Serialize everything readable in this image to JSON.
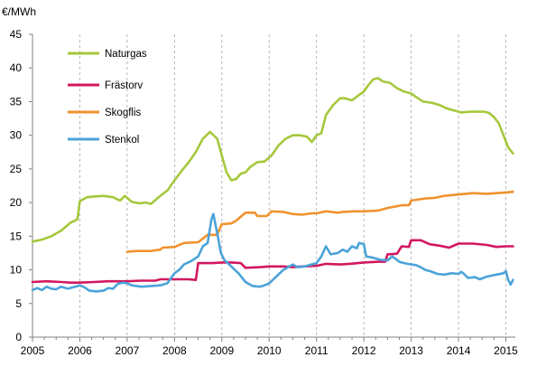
{
  "chart_data": {
    "type": "line",
    "ylabel": "€/MWh",
    "xlabel": "",
    "xlim": [
      2005,
      2015.2
    ],
    "ylim": [
      0,
      45
    ],
    "y_ticks": [
      0,
      5,
      10,
      15,
      20,
      25,
      30,
      35,
      40,
      45
    ],
    "x_ticks": [
      2005,
      2006,
      2007,
      2008,
      2009,
      2010,
      2011,
      2012,
      2013,
      2014,
      2015
    ],
    "x_tick_labels": [
      "2005",
      "2006",
      "2007",
      "2008",
      "2009",
      "2010",
      "2011",
      "2012",
      "2013",
      "2014",
      "2015"
    ],
    "y_tick_labels": [
      "0",
      "5",
      "10",
      "15",
      "20",
      "25",
      "30",
      "35",
      "40",
      "45"
    ],
    "grid": {
      "x": "dashed-vertical",
      "y": false
    },
    "legend": {
      "placement": "top-left"
    },
    "series": [
      {
        "name": "Naturgas",
        "color": "#a5c83c",
        "points": [
          [
            2005.0,
            14.2
          ],
          [
            2005.2,
            14.5
          ],
          [
            2005.4,
            15.0
          ],
          [
            2005.6,
            15.8
          ],
          [
            2005.8,
            17.0
          ],
          [
            2005.95,
            17.5
          ],
          [
            2006.0,
            20.2
          ],
          [
            2006.15,
            20.8
          ],
          [
            2006.3,
            20.9
          ],
          [
            2006.5,
            21.0
          ],
          [
            2006.7,
            20.8
          ],
          [
            2006.85,
            20.3
          ],
          [
            2006.95,
            21.0
          ],
          [
            2007.1,
            20.1
          ],
          [
            2007.25,
            19.9
          ],
          [
            2007.4,
            20.0
          ],
          [
            2007.5,
            19.8
          ],
          [
            2007.7,
            21.0
          ],
          [
            2007.85,
            21.8
          ],
          [
            2008.0,
            23.3
          ],
          [
            2008.15,
            24.7
          ],
          [
            2008.3,
            26.0
          ],
          [
            2008.45,
            27.5
          ],
          [
            2008.6,
            29.5
          ],
          [
            2008.75,
            30.5
          ],
          [
            2008.9,
            29.5
          ],
          [
            2009.0,
            27.0
          ],
          [
            2009.1,
            24.5
          ],
          [
            2009.2,
            23.3
          ],
          [
            2009.3,
            23.5
          ],
          [
            2009.4,
            24.3
          ],
          [
            2009.5,
            24.5
          ],
          [
            2009.6,
            25.3
          ],
          [
            2009.75,
            26.0
          ],
          [
            2009.9,
            26.1
          ],
          [
            2010.05,
            27.0
          ],
          [
            2010.2,
            28.5
          ],
          [
            2010.35,
            29.5
          ],
          [
            2010.5,
            30.0
          ],
          [
            2010.65,
            30.0
          ],
          [
            2010.8,
            29.8
          ],
          [
            2010.9,
            29.0
          ],
          [
            2011.0,
            30.0
          ],
          [
            2011.1,
            30.3
          ],
          [
            2011.2,
            33.0
          ],
          [
            2011.35,
            34.5
          ],
          [
            2011.5,
            35.5
          ],
          [
            2011.6,
            35.5
          ],
          [
            2011.75,
            35.2
          ],
          [
            2011.9,
            36.0
          ],
          [
            2012.0,
            36.5
          ],
          [
            2012.1,
            37.5
          ],
          [
            2012.2,
            38.3
          ],
          [
            2012.3,
            38.5
          ],
          [
            2012.4,
            38.0
          ],
          [
            2012.55,
            37.8
          ],
          [
            2012.7,
            37.0
          ],
          [
            2012.85,
            36.5
          ],
          [
            2013.0,
            36.2
          ],
          [
            2013.1,
            35.7
          ],
          [
            2013.25,
            35.0
          ],
          [
            2013.45,
            34.8
          ],
          [
            2013.6,
            34.5
          ],
          [
            2013.75,
            34.0
          ],
          [
            2013.9,
            33.7
          ],
          [
            2014.05,
            33.4
          ],
          [
            2014.25,
            33.5
          ],
          [
            2014.4,
            33.5
          ],
          [
            2014.55,
            33.5
          ],
          [
            2014.65,
            33.3
          ],
          [
            2014.75,
            32.7
          ],
          [
            2014.85,
            31.8
          ],
          [
            2014.95,
            30.0
          ],
          [
            2015.05,
            28.2
          ],
          [
            2015.15,
            27.3
          ]
        ]
      },
      {
        "name": "Frästorv",
        "color": "#d2185f",
        "points": [
          [
            2005.0,
            8.2
          ],
          [
            2005.3,
            8.3
          ],
          [
            2005.6,
            8.2
          ],
          [
            2005.8,
            8.1
          ],
          [
            2006.0,
            8.1
          ],
          [
            2006.3,
            8.2
          ],
          [
            2006.6,
            8.3
          ],
          [
            2007.0,
            8.3
          ],
          [
            2007.3,
            8.4
          ],
          [
            2007.6,
            8.4
          ],
          [
            2007.7,
            8.6
          ],
          [
            2008.0,
            8.6
          ],
          [
            2008.3,
            8.6
          ],
          [
            2008.45,
            8.5
          ],
          [
            2008.5,
            11.0
          ],
          [
            2008.8,
            11.0
          ],
          [
            2009.0,
            11.1
          ],
          [
            2009.2,
            11.1
          ],
          [
            2009.4,
            11.0
          ],
          [
            2009.5,
            10.3
          ],
          [
            2009.8,
            10.4
          ],
          [
            2010.0,
            10.5
          ],
          [
            2010.3,
            10.5
          ],
          [
            2010.5,
            10.4
          ],
          [
            2010.7,
            10.5
          ],
          [
            2011.0,
            10.6
          ],
          [
            2011.2,
            10.9
          ],
          [
            2011.5,
            10.8
          ],
          [
            2011.7,
            10.9
          ],
          [
            2012.0,
            11.1
          ],
          [
            2012.3,
            11.2
          ],
          [
            2012.45,
            11.2
          ],
          [
            2012.5,
            12.3
          ],
          [
            2012.7,
            12.4
          ],
          [
            2012.8,
            13.5
          ],
          [
            2012.95,
            13.4
          ],
          [
            2013.0,
            14.4
          ],
          [
            2013.2,
            14.4
          ],
          [
            2013.4,
            13.8
          ],
          [
            2013.6,
            13.6
          ],
          [
            2013.8,
            13.3
          ],
          [
            2014.0,
            13.9
          ],
          [
            2014.3,
            13.9
          ],
          [
            2014.6,
            13.7
          ],
          [
            2014.8,
            13.4
          ],
          [
            2015.0,
            13.5
          ],
          [
            2015.15,
            13.5
          ]
        ]
      },
      {
        "name": "Skogflis",
        "color": "#f0922e",
        "points": [
          [
            2007.0,
            12.7
          ],
          [
            2007.2,
            12.8
          ],
          [
            2007.5,
            12.8
          ],
          [
            2007.7,
            13.0
          ],
          [
            2007.75,
            13.3
          ],
          [
            2008.0,
            13.4
          ],
          [
            2008.2,
            14.0
          ],
          [
            2008.5,
            14.1
          ],
          [
            2008.7,
            15.2
          ],
          [
            2008.9,
            15.2
          ],
          [
            2009.0,
            16.8
          ],
          [
            2009.2,
            16.9
          ],
          [
            2009.3,
            17.3
          ],
          [
            2009.5,
            18.5
          ],
          [
            2009.7,
            18.5
          ],
          [
            2009.75,
            18.0
          ],
          [
            2009.95,
            18.0
          ],
          [
            2010.05,
            18.7
          ],
          [
            2010.3,
            18.6
          ],
          [
            2010.5,
            18.3
          ],
          [
            2010.7,
            18.2
          ],
          [
            2010.9,
            18.4
          ],
          [
            2011.0,
            18.4
          ],
          [
            2011.2,
            18.7
          ],
          [
            2011.45,
            18.5
          ],
          [
            2011.55,
            18.6
          ],
          [
            2011.8,
            18.7
          ],
          [
            2012.0,
            18.7
          ],
          [
            2012.3,
            18.8
          ],
          [
            2012.5,
            19.2
          ],
          [
            2012.8,
            19.6
          ],
          [
            2012.95,
            19.6
          ],
          [
            2013.0,
            20.3
          ],
          [
            2013.3,
            20.6
          ],
          [
            2013.5,
            20.7
          ],
          [
            2013.7,
            21.0
          ],
          [
            2014.0,
            21.2
          ],
          [
            2014.3,
            21.4
          ],
          [
            2014.6,
            21.3
          ],
          [
            2014.8,
            21.4
          ],
          [
            2015.0,
            21.5
          ],
          [
            2015.15,
            21.6
          ]
        ]
      },
      {
        "name": "Stenkol",
        "color": "#4ba3d9",
        "points": [
          [
            2005.0,
            7.0
          ],
          [
            2005.1,
            7.3
          ],
          [
            2005.2,
            7.0
          ],
          [
            2005.3,
            7.5
          ],
          [
            2005.4,
            7.2
          ],
          [
            2005.5,
            7.1
          ],
          [
            2005.6,
            7.5
          ],
          [
            2005.75,
            7.2
          ],
          [
            2005.9,
            7.5
          ],
          [
            2006.0,
            7.7
          ],
          [
            2006.1,
            7.4
          ],
          [
            2006.2,
            6.9
          ],
          [
            2006.35,
            6.8
          ],
          [
            2006.5,
            6.9
          ],
          [
            2006.6,
            7.3
          ],
          [
            2006.7,
            7.2
          ],
          [
            2006.8,
            7.9
          ],
          [
            2006.9,
            8.1
          ],
          [
            2007.0,
            8.0
          ],
          [
            2007.1,
            7.7
          ],
          [
            2007.3,
            7.5
          ],
          [
            2007.5,
            7.6
          ],
          [
            2007.7,
            7.7
          ],
          [
            2007.85,
            8.0
          ],
          [
            2008.0,
            9.5
          ],
          [
            2008.1,
            10.0
          ],
          [
            2008.2,
            10.8
          ],
          [
            2008.35,
            11.3
          ],
          [
            2008.5,
            12.0
          ],
          [
            2008.6,
            13.5
          ],
          [
            2008.7,
            14.0
          ],
          [
            2008.78,
            17.5
          ],
          [
            2008.82,
            18.3
          ],
          [
            2008.9,
            15.5
          ],
          [
            2008.98,
            12.5
          ],
          [
            2009.05,
            11.5
          ],
          [
            2009.2,
            10.5
          ],
          [
            2009.35,
            9.5
          ],
          [
            2009.5,
            8.2
          ],
          [
            2009.65,
            7.6
          ],
          [
            2009.8,
            7.5
          ],
          [
            2009.9,
            7.7
          ],
          [
            2010.0,
            8.0
          ],
          [
            2010.15,
            9.0
          ],
          [
            2010.3,
            10.0
          ],
          [
            2010.5,
            10.8
          ],
          [
            2010.6,
            10.4
          ],
          [
            2010.75,
            10.5
          ],
          [
            2010.85,
            10.7
          ],
          [
            2011.0,
            11.0
          ],
          [
            2011.1,
            12.0
          ],
          [
            2011.2,
            13.5
          ],
          [
            2011.3,
            12.3
          ],
          [
            2011.45,
            12.5
          ],
          [
            2011.55,
            13.0
          ],
          [
            2011.65,
            12.7
          ],
          [
            2011.75,
            13.5
          ],
          [
            2011.85,
            13.2
          ],
          [
            2011.9,
            14.0
          ],
          [
            2012.0,
            13.8
          ],
          [
            2012.05,
            12.0
          ],
          [
            2012.2,
            11.8
          ],
          [
            2012.35,
            11.5
          ],
          [
            2012.5,
            11.4
          ],
          [
            2012.6,
            12.0
          ],
          [
            2012.75,
            11.2
          ],
          [
            2012.85,
            11.0
          ],
          [
            2013.0,
            10.8
          ],
          [
            2013.1,
            10.7
          ],
          [
            2013.2,
            10.4
          ],
          [
            2013.3,
            10.0
          ],
          [
            2013.4,
            9.8
          ],
          [
            2013.55,
            9.4
          ],
          [
            2013.7,
            9.3
          ],
          [
            2013.85,
            9.5
          ],
          [
            2014.0,
            9.4
          ],
          [
            2014.05,
            9.7
          ],
          [
            2014.1,
            9.5
          ],
          [
            2014.2,
            8.8
          ],
          [
            2014.35,
            8.9
          ],
          [
            2014.45,
            8.6
          ],
          [
            2014.6,
            9.0
          ],
          [
            2014.8,
            9.3
          ],
          [
            2014.95,
            9.5
          ],
          [
            2015.0,
            9.8
          ],
          [
            2015.05,
            8.5
          ],
          [
            2015.1,
            7.8
          ],
          [
            2015.15,
            8.5
          ]
        ]
      }
    ]
  }
}
